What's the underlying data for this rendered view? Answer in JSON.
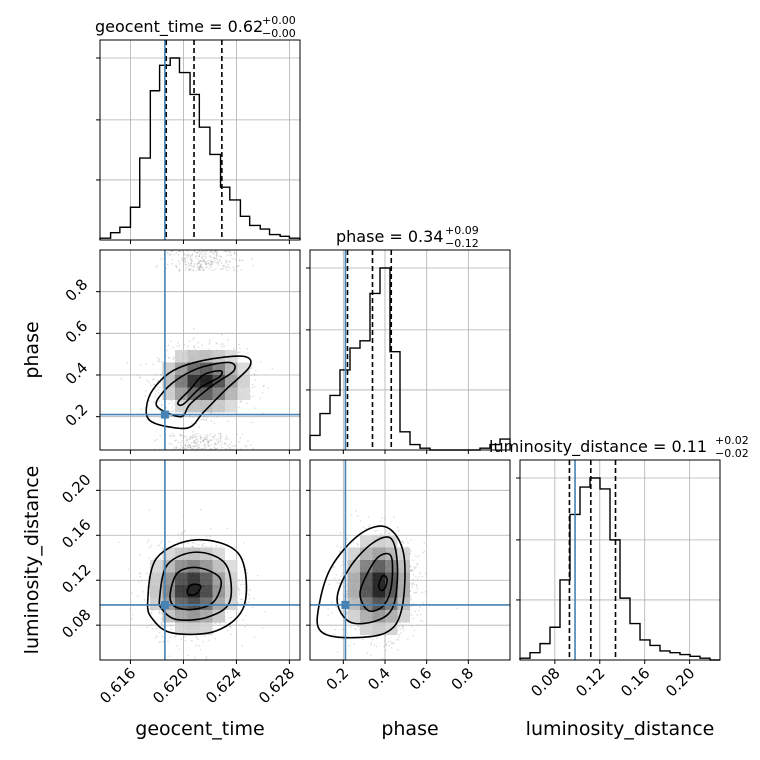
{
  "chart_data": {
    "type": "corner",
    "parameters": [
      "geocent_time",
      "phase",
      "luminosity_distance"
    ],
    "axis_labels": [
      "geocent_time",
      "phase",
      "luminosity_distance"
    ],
    "ylabels": {
      "phase": "phase",
      "luminosity_distance": "luminosity_distance"
    },
    "ranges": {
      "geocent_time": [
        0.6137,
        0.6288
      ],
      "phase": [
        0.04,
        1.0
      ],
      "luminosity_distance": [
        0.049,
        0.227
      ]
    },
    "ticks": {
      "geocent_time": [
        0.616,
        0.62,
        0.624,
        0.628
      ],
      "phase": [
        0.2,
        0.4,
        0.6,
        0.8
      ],
      "luminosity_distance": [
        0.08,
        0.12,
        0.16,
        0.2
      ]
    },
    "tick_labels": {
      "geocent_time": [
        "0.616",
        "0.620",
        "0.624",
        "0.628"
      ],
      "phase": [
        "0.2",
        "0.4",
        "0.6",
        "0.8"
      ],
      "luminosity_distance": [
        "0.08",
        "0.12",
        "0.16",
        "0.20"
      ]
    },
    "truths": {
      "geocent_time": 0.6186,
      "phase": 0.21,
      "luminosity_distance": 0.098
    },
    "titles": {
      "geocent_time": {
        "name": "geocent_time",
        "median": "0.62",
        "plus": "+0.00",
        "minus": "−0.00"
      },
      "phase": {
        "name": "phase",
        "median": "0.34",
        "plus": "+0.09",
        "minus": "−0.12"
      },
      "luminosity_distance": {
        "name": "luminosity_distance",
        "median": "0.11",
        "plus": "+0.02",
        "minus": "−0.02"
      }
    },
    "quantiles": {
      "geocent_time": [
        0.6187,
        0.6208,
        0.6229
      ],
      "phase": [
        0.22,
        0.34,
        0.43
      ],
      "luminosity_distance": [
        0.093,
        0.112,
        0.134
      ]
    },
    "histograms": {
      "geocent_time": {
        "edges": [
          0.6137,
          0.6145,
          0.6152,
          0.616,
          0.6167,
          0.6175,
          0.6182,
          0.619,
          0.6197,
          0.6205,
          0.6212,
          0.622,
          0.6228,
          0.6235,
          0.6243,
          0.625,
          0.6258,
          0.6265,
          0.6273,
          0.628,
          0.6288
        ],
        "counts": [
          1,
          4,
          7,
          18,
          45,
          82,
          96,
          100,
          92,
          80,
          62,
          47,
          29,
          22,
          13,
          8,
          6,
          3,
          2,
          1
        ]
      },
      "phase": {
        "edges": [
          0.04,
          0.088,
          0.136,
          0.184,
          0.232,
          0.28,
          0.328,
          0.376,
          0.424,
          0.472,
          0.52,
          0.568,
          0.616,
          0.664,
          0.712,
          0.76,
          0.808,
          0.856,
          0.904,
          0.952,
          1.0
        ],
        "counts": [
          8,
          20,
          30,
          44,
          56,
          60,
          86,
          100,
          54,
          10,
          3,
          1,
          0,
          0,
          0,
          0,
          0,
          1,
          3,
          6
        ]
      },
      "luminosity_distance": {
        "edges": [
          0.049,
          0.0579,
          0.0668,
          0.0757,
          0.0846,
          0.0935,
          0.1024,
          0.1113,
          0.1202,
          0.1291,
          0.138,
          0.1469,
          0.1558,
          0.1647,
          0.1736,
          0.1825,
          0.1914,
          0.2003,
          0.2092,
          0.2181,
          0.227
        ],
        "counts": [
          1,
          4,
          9,
          18,
          44,
          80,
          95,
          100,
          94,
          66,
          34,
          20,
          11,
          8,
          5,
          4,
          3,
          2,
          1,
          0
        ]
      }
    },
    "joint": {
      "phase_vs_geocent_time": {
        "center": [
          0.6215,
          0.37
        ],
        "spread": [
          0.0015,
          0.07
        ],
        "secondary_mode": {
          "phase_range": [
            0.9,
            1.0
          ],
          "phase_range_low": [
            0.04,
            0.12
          ]
        },
        "contours": [
          [
            [
              0.6196,
              0.27
            ],
            [
              0.6205,
              0.33
            ],
            [
              0.6215,
              0.4
            ],
            [
              0.6228,
              0.42
            ],
            [
              0.6227,
              0.39
            ],
            [
              0.6213,
              0.34
            ],
            [
              0.62,
              0.26
            ]
          ],
          [
            [
              0.618,
              0.25
            ],
            [
              0.6185,
              0.32
            ],
            [
              0.6198,
              0.39
            ],
            [
              0.6215,
              0.44
            ],
            [
              0.6235,
              0.46
            ],
            [
              0.6238,
              0.42
            ],
            [
              0.6222,
              0.35
            ],
            [
              0.6205,
              0.26
            ],
            [
              0.6198,
              0.2
            ]
          ],
          [
            [
              0.6172,
              0.24
            ],
            [
              0.6177,
              0.33
            ],
            [
              0.6192,
              0.42
            ],
            [
              0.6215,
              0.47
            ],
            [
              0.6245,
              0.49
            ],
            [
              0.625,
              0.44
            ],
            [
              0.6232,
              0.33
            ],
            [
              0.6215,
              0.22
            ],
            [
              0.6205,
              0.15
            ],
            [
              0.619,
              0.15
            ],
            [
              0.6175,
              0.18
            ]
          ]
        ]
      },
      "luminosity_distance_vs_geocent_time": {
        "center": [
          0.6207,
          0.112
        ],
        "spread": [
          0.0015,
          0.018
        ],
        "contours": [
          [
            [
              0.6203,
              0.111
            ],
            [
              0.6206,
              0.116
            ],
            [
              0.6213,
              0.115
            ],
            [
              0.621,
              0.108
            ],
            [
              0.6204,
              0.107
            ]
          ],
          [
            [
              0.619,
              0.108
            ],
            [
              0.6196,
              0.127
            ],
            [
              0.6212,
              0.131
            ],
            [
              0.6228,
              0.121
            ],
            [
              0.6223,
              0.101
            ],
            [
              0.6207,
              0.094
            ],
            [
              0.6193,
              0.097
            ]
          ],
          [
            [
              0.6182,
              0.104
            ],
            [
              0.6188,
              0.134
            ],
            [
              0.621,
              0.145
            ],
            [
              0.6232,
              0.134
            ],
            [
              0.6235,
              0.101
            ],
            [
              0.6218,
              0.087
            ],
            [
              0.6195,
              0.085
            ],
            [
              0.6184,
              0.094
            ]
          ],
          [
            [
              0.6173,
              0.101
            ],
            [
              0.618,
              0.14
            ],
            [
              0.621,
              0.156
            ],
            [
              0.6242,
              0.143
            ],
            [
              0.6246,
              0.098
            ],
            [
              0.6225,
              0.075
            ],
            [
              0.6192,
              0.073
            ],
            [
              0.6177,
              0.085
            ]
          ]
        ]
      },
      "luminosity_distance_vs_phase": {
        "center": [
          0.37,
          0.115
        ],
        "spread": [
          0.08,
          0.02
        ],
        "contours": [
          [
            [
              0.37,
              0.116
            ],
            [
              0.39,
              0.124
            ],
            [
              0.41,
              0.121
            ],
            [
              0.4,
              0.113
            ],
            [
              0.38,
              0.111
            ]
          ],
          [
            [
              0.28,
              0.107
            ],
            [
              0.31,
              0.124
            ],
            [
              0.37,
              0.141
            ],
            [
              0.43,
              0.141
            ],
            [
              0.43,
              0.114
            ],
            [
              0.39,
              0.097
            ],
            [
              0.32,
              0.093
            ]
          ],
          [
            [
              0.17,
              0.103
            ],
            [
              0.23,
              0.131
            ],
            [
              0.34,
              0.153
            ],
            [
              0.43,
              0.157
            ],
            [
              0.46,
              0.131
            ],
            [
              0.44,
              0.097
            ],
            [
              0.36,
              0.084
            ],
            [
              0.23,
              0.083
            ]
          ],
          [
            [
              0.08,
              0.094
            ],
            [
              0.14,
              0.131
            ],
            [
              0.28,
              0.161
            ],
            [
              0.41,
              0.167
            ],
            [
              0.49,
              0.143
            ],
            [
              0.48,
              0.094
            ],
            [
              0.4,
              0.073
            ],
            [
              0.2,
              0.069
            ],
            [
              0.09,
              0.075
            ]
          ]
        ]
      }
    }
  }
}
